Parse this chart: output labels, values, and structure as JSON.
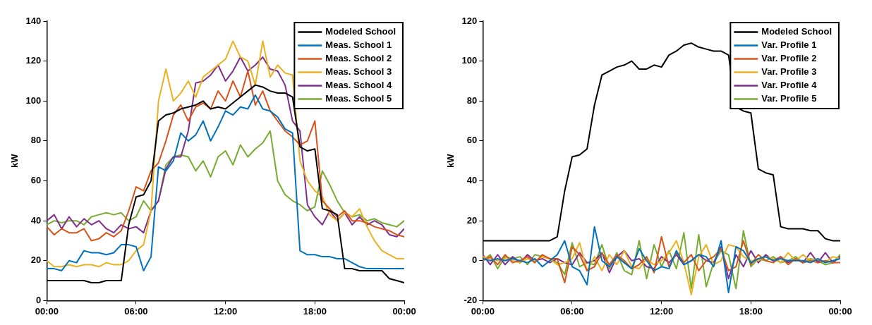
{
  "chart_data": [
    {
      "type": "line",
      "ylabel": "kW",
      "legend": "top right",
      "grid": false,
      "marker": "none",
      "line_style": "solid",
      "x": [
        0,
        0.5,
        1,
        1.5,
        2,
        2.5,
        3,
        3.5,
        4,
        4.5,
        5,
        5.5,
        6,
        6.5,
        7,
        7.5,
        8,
        8.5,
        9,
        9.5,
        10,
        10.5,
        11,
        11.5,
        12,
        12.5,
        13,
        13.5,
        14,
        14.5,
        15,
        15.5,
        16,
        16.5,
        17,
        17.5,
        18,
        18.5,
        19,
        19.5,
        20,
        20.5,
        21,
        21.5,
        22,
        22.5,
        23,
        23.5,
        24
      ],
      "xlim": [
        0,
        24
      ],
      "xticks": [
        {
          "value": 0,
          "label": "00:00"
        },
        {
          "value": 6,
          "label": "06:00"
        },
        {
          "value": 12,
          "label": "12:00"
        },
        {
          "value": 18,
          "label": "18:00"
        },
        {
          "value": 24,
          "label": "00:00"
        }
      ],
      "ylim": [
        0,
        140
      ],
      "yticks": [
        0,
        20,
        40,
        60,
        80,
        100,
        120,
        140
      ],
      "series": [
        {
          "name": "Modeled School",
          "color": "#000000",
          "values": [
            10,
            10,
            10,
            10,
            10,
            10,
            9,
            9,
            10,
            10,
            10,
            38,
            52,
            53,
            60,
            90,
            93,
            94,
            96,
            97,
            98,
            100,
            96,
            97,
            96,
            99,
            102,
            105,
            108,
            107,
            105,
            104,
            104,
            102,
            77,
            75,
            76,
            46,
            45,
            43,
            16,
            16,
            15,
            15,
            15,
            15,
            11,
            10,
            9
          ]
        },
        {
          "name": "Meas. School 1",
          "color": "#0072bd",
          "values": [
            16,
            16,
            15,
            20,
            19,
            25,
            24,
            24,
            23,
            24,
            28,
            28,
            27,
            15,
            22,
            67,
            65,
            70,
            84,
            80,
            83,
            90,
            80,
            87,
            95,
            93,
            97,
            96,
            103,
            96,
            95,
            92,
            86,
            84,
            25,
            23,
            23,
            22,
            22,
            21,
            21,
            19,
            17,
            16,
            16,
            16,
            16,
            16,
            16
          ]
        },
        {
          "name": "Meas. School 2",
          "color": "#d95319",
          "values": [
            37,
            33,
            36,
            34,
            34,
            36,
            30,
            31,
            34,
            32,
            35,
            45,
            57,
            55,
            65,
            69,
            80,
            93,
            98,
            90,
            97,
            99,
            96,
            105,
            100,
            110,
            102,
            115,
            98,
            105,
            95,
            90,
            85,
            82,
            78,
            80,
            90,
            50,
            46,
            42,
            45,
            40,
            40,
            39,
            37,
            36,
            35,
            33,
            32
          ]
        },
        {
          "name": "Meas. School 3",
          "color": "#edb120",
          "values": [
            20,
            17,
            17,
            18,
            17,
            18,
            18,
            17,
            19,
            18,
            18,
            20,
            25,
            28,
            45,
            100,
            116,
            100,
            104,
            110,
            102,
            112,
            115,
            118,
            121,
            130,
            122,
            120,
            108,
            130,
            112,
            118,
            114,
            113,
            70,
            60,
            55,
            52,
            43,
            40,
            44,
            42,
            46,
            37,
            30,
            25,
            23,
            21,
            21
          ]
        },
        {
          "name": "Meas. School 4",
          "color": "#7e2f8e",
          "values": [
            40,
            43,
            36,
            42,
            37,
            41,
            38,
            40,
            36,
            34,
            38,
            36,
            37,
            34,
            45,
            50,
            66,
            72,
            72,
            85,
            109,
            110,
            113,
            118,
            110,
            115,
            122,
            115,
            118,
            122,
            116,
            115,
            108,
            90,
            85,
            48,
            42,
            38,
            45,
            40,
            44,
            38,
            42,
            38,
            40,
            38,
            33,
            32,
            36
          ]
        },
        {
          "name": "Meas. School 5",
          "color": "#77ac30",
          "values": [
            38,
            40,
            39,
            40,
            40,
            38,
            42,
            43,
            44,
            43,
            44,
            40,
            42,
            50,
            45,
            50,
            68,
            72,
            73,
            72,
            65,
            70,
            62,
            72,
            75,
            68,
            78,
            72,
            76,
            79,
            85,
            60,
            53,
            50,
            48,
            45,
            47,
            65,
            58,
            50,
            44,
            42,
            43,
            40,
            41,
            39,
            38,
            37,
            40
          ]
        }
      ]
    },
    {
      "type": "line",
      "ylabel": "kW",
      "legend": "top right",
      "grid": false,
      "marker": "none",
      "line_style": "solid",
      "x": [
        0,
        0.5,
        1,
        1.5,
        2,
        2.5,
        3,
        3.5,
        4,
        4.5,
        5,
        5.5,
        6,
        6.5,
        7,
        7.5,
        8,
        8.5,
        9,
        9.5,
        10,
        10.5,
        11,
        11.5,
        12,
        12.5,
        13,
        13.5,
        14,
        14.5,
        15,
        15.5,
        16,
        16.5,
        17,
        17.5,
        18,
        18.5,
        19,
        19.5,
        20,
        20.5,
        21,
        21.5,
        22,
        22.5,
        23,
        23.5,
        24
      ],
      "xlim": [
        0,
        24
      ],
      "xticks": [
        {
          "value": 0,
          "label": "00:00"
        },
        {
          "value": 6,
          "label": "06:00"
        },
        {
          "value": 12,
          "label": "12:00"
        },
        {
          "value": 18,
          "label": "18:00"
        },
        {
          "value": 24,
          "label": "00:00"
        }
      ],
      "ylim": [
        -20,
        120
      ],
      "yticks": [
        -20,
        0,
        20,
        40,
        60,
        80,
        100,
        120
      ],
      "series": [
        {
          "name": "Modeled School",
          "color": "#000000",
          "values": [
            10,
            10,
            10,
            10,
            10,
            10,
            10,
            10,
            10,
            10,
            12,
            35,
            52,
            53,
            56,
            78,
            93,
            95,
            97,
            98,
            100,
            96,
            96,
            98,
            97,
            103,
            105,
            108,
            109,
            107,
            106,
            105,
            105,
            103,
            77,
            75,
            74,
            46,
            44,
            43,
            17,
            16,
            16,
            16,
            15,
            15,
            11,
            10,
            10
          ]
        },
        {
          "name": "Var. Profile 1",
          "color": "#0072bd",
          "values": [
            1,
            0,
            1,
            0,
            1,
            0,
            -1,
            1,
            -3,
            0,
            3,
            10,
            -3,
            -5,
            -12,
            17,
            0,
            -3,
            2,
            -1,
            -4,
            6,
            0,
            -5,
            -3,
            -4,
            5,
            -2,
            0,
            3,
            2,
            -3,
            10,
            -16,
            7,
            5,
            -1,
            1,
            2,
            0,
            1,
            0,
            0,
            0,
            -1,
            1,
            -1,
            0,
            1
          ]
        },
        {
          "name": "Var. Profile 2",
          "color": "#d95319",
          "values": [
            0,
            2,
            -2,
            3,
            -1,
            0,
            2,
            -1,
            3,
            1,
            1,
            -11,
            7,
            3,
            -5,
            -3,
            4,
            -2,
            3,
            0,
            -4,
            -2,
            2,
            -6,
            12,
            -3,
            4,
            -1,
            3,
            -5,
            0,
            2,
            6,
            -5,
            -3,
            10,
            -2,
            3,
            0,
            -1,
            2,
            -2,
            1,
            -1,
            0,
            -1,
            0,
            -1,
            -1
          ]
        },
        {
          "name": "Var. Profile 3",
          "color": "#edb120",
          "values": [
            2,
            1,
            0,
            1,
            0,
            -1,
            1,
            0,
            2,
            1,
            -2,
            -1,
            1,
            9,
            -5,
            2,
            -5,
            3,
            -2,
            5,
            -3,
            -4,
            1,
            -2,
            0,
            4,
            10,
            -1,
            -17,
            2,
            8,
            -2,
            0,
            8,
            7,
            2,
            0,
            0,
            2,
            1,
            -1,
            4,
            0,
            3,
            0,
            1,
            -1,
            2,
            1
          ]
        },
        {
          "name": "Var. Profile 4",
          "color": "#7e2f8e",
          "values": [
            3,
            -2,
            3,
            -2,
            2,
            -1,
            3,
            0,
            1,
            -1,
            1,
            -1,
            -2,
            4,
            -1,
            0,
            4,
            -6,
            2,
            5,
            0,
            1,
            -3,
            -4,
            2,
            -1,
            3,
            -2,
            0,
            3,
            0,
            -1,
            7,
            -9,
            3,
            -3,
            5,
            -1,
            3,
            0,
            2,
            -1,
            1,
            -1,
            4,
            -1,
            4,
            -1,
            2
          ]
        },
        {
          "name": "Var. Profile 5",
          "color": "#77ac30",
          "values": [
            0,
            3,
            -4,
            2,
            1,
            2,
            -2,
            3,
            2,
            1,
            -1,
            -7,
            9,
            -3,
            -1,
            -2,
            8,
            -4,
            4,
            -5,
            -7,
            10,
            -9,
            8,
            -3,
            5,
            -4,
            14,
            -14,
            13,
            -13,
            -1,
            5,
            3,
            -14,
            15,
            -3,
            1,
            0,
            2,
            -1,
            0,
            2,
            -1,
            1,
            0,
            -2,
            -1,
            3
          ]
        }
      ]
    }
  ]
}
